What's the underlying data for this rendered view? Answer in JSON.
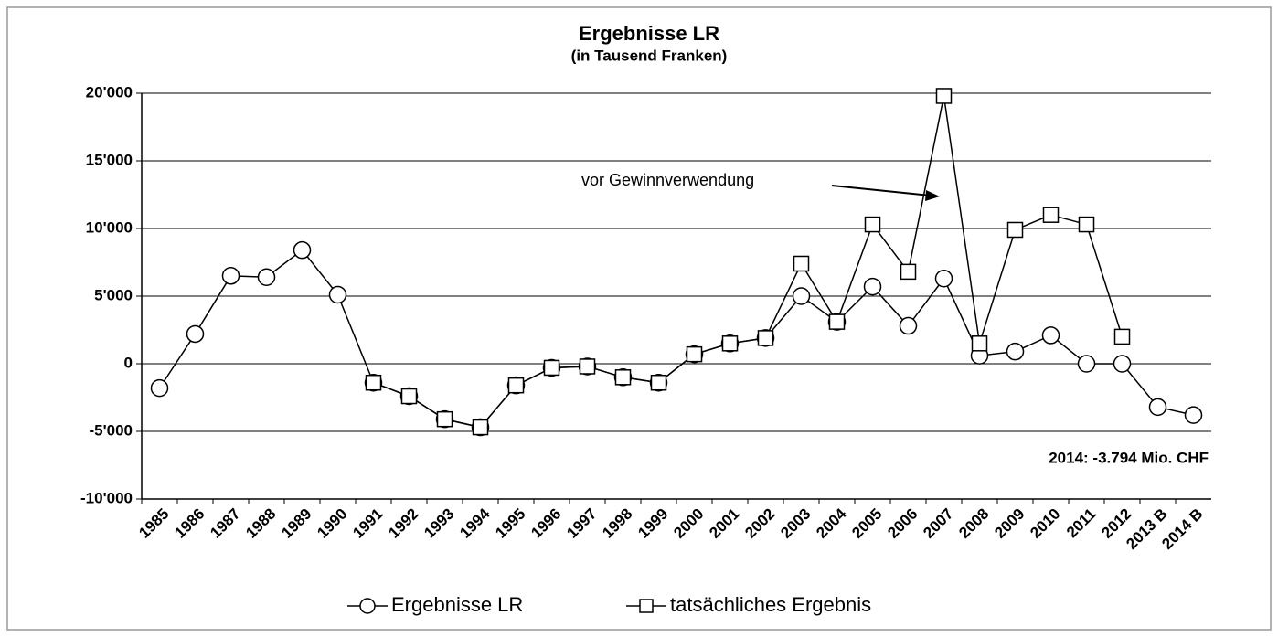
{
  "chart_data": {
    "type": "line",
    "title": "Ergebnisse LR",
    "subtitle": "(in Tausend Franken)",
    "annotations": [
      "vor  Gewinnverwendung",
      "2014: -3.794 Mio. CHF"
    ],
    "categories": [
      "1985",
      "1986",
      "1987",
      "1988",
      "1989",
      "1990",
      "1991",
      "1992",
      "1993",
      "1994",
      "1995",
      "1996",
      "1997",
      "1998",
      "1999",
      "2000",
      "2001",
      "2002",
      "2003",
      "2004",
      "2005",
      "2006",
      "2007",
      "2008",
      "2009",
      "2010",
      "2011",
      "2012",
      "2013 B",
      "2014 B"
    ],
    "series": [
      {
        "name": "Ergebnisse LR",
        "color": "#000000",
        "marker": "circle",
        "values": [
          -1800,
          2200,
          6500,
          6400,
          8400,
          5100,
          -1400,
          -2400,
          -4100,
          -4700,
          -1600,
          -300,
          -200,
          -1000,
          -1400,
          700,
          1500,
          1900,
          5000,
          3100,
          5700,
          2800,
          6300,
          600,
          900,
          2100,
          0,
          0,
          -3200,
          -3794
        ]
      },
      {
        "name": "tatsächliches Ergebnis",
        "color": "#000000",
        "marker": "square",
        "values": [
          null,
          null,
          null,
          null,
          null,
          null,
          -1400,
          -2400,
          -4100,
          -4700,
          -1600,
          -300,
          -200,
          -1000,
          -1400,
          700,
          1500,
          1900,
          7400,
          3100,
          10300,
          6800,
          19800,
          1500,
          9900,
          11000,
          10300,
          2000,
          null,
          null
        ]
      }
    ],
    "ylim": [
      -10000,
      20000
    ],
    "yticks": [
      {
        "value": -10000,
        "label": "-10'000"
      },
      {
        "value": -5000,
        "label": "-5'000"
      },
      0,
      {
        "value": 5000,
        "label": "5'000"
      },
      {
        "value": 10000,
        "label": "10'000"
      },
      {
        "value": 15000,
        "label": "15'000"
      },
      {
        "value": 20000,
        "label": "20'000"
      }
    ],
    "grid": true,
    "legend": "bottom"
  }
}
